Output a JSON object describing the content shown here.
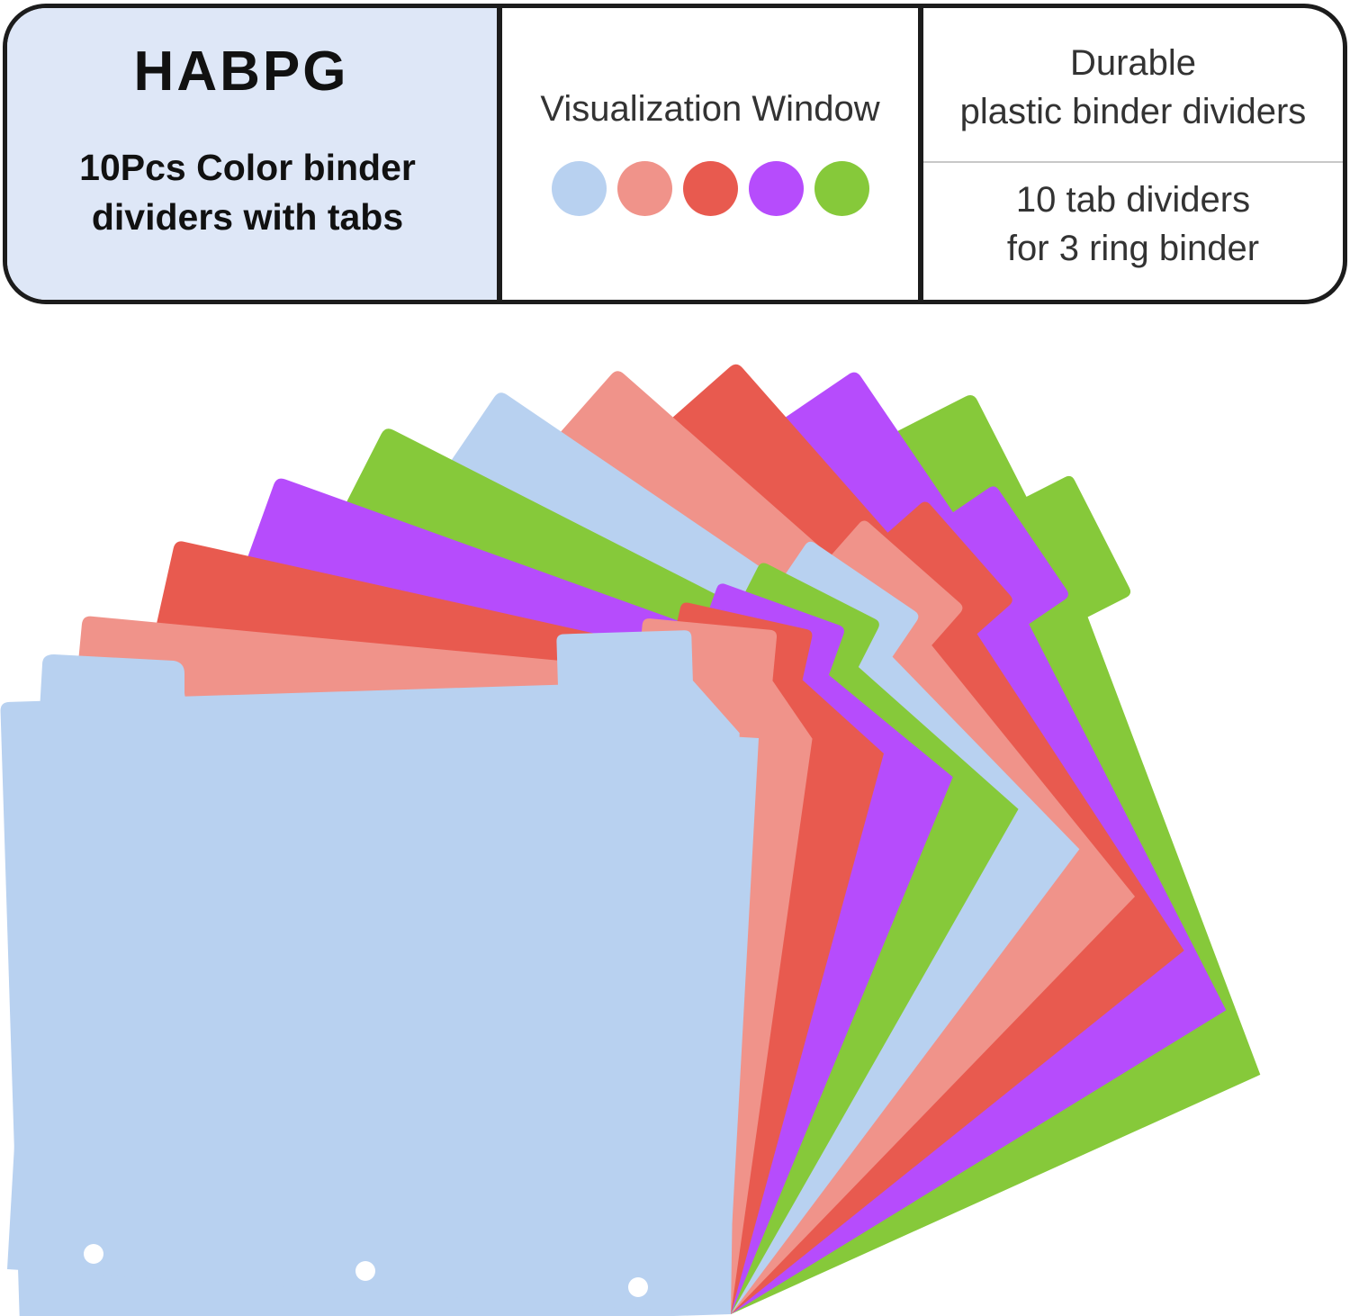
{
  "brand": {
    "name": "HABPG",
    "subtitle_line1": "10Pcs Color binder",
    "subtitle_line2": "dividers with tabs"
  },
  "window": {
    "title": "Visualization Window",
    "swatches": [
      {
        "name": "light-blue",
        "color": "#b8d1f0"
      },
      {
        "name": "salmon",
        "color": "#f0938a"
      },
      {
        "name": "red",
        "color": "#e85a4f"
      },
      {
        "name": "purple",
        "color": "#b64cfc"
      },
      {
        "name": "green",
        "color": "#86c93a"
      }
    ]
  },
  "features": {
    "top_line1": "Durable",
    "top_line2": "plastic binder dividers",
    "bottom_line1": "10 tab dividers",
    "bottom_line2": "for 3 ring binder"
  },
  "product": {
    "divider_count": 10,
    "colors": [
      "#86c93a",
      "#b64cfc",
      "#e85a4f",
      "#f0938a",
      "#b8d1f0",
      "#86c93a",
      "#b64cfc",
      "#e85a4f",
      "#f0938a",
      "#b8d1f0"
    ]
  }
}
